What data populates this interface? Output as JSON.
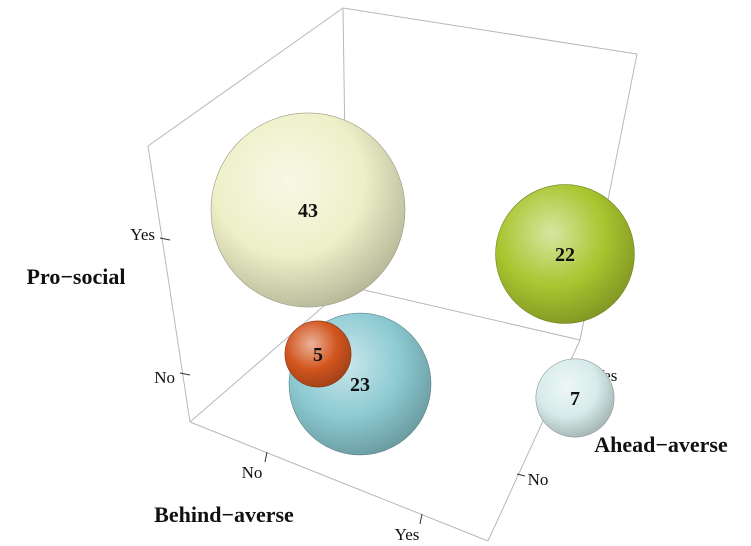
{
  "chart_data": {
    "type": "bubble3d",
    "axes": {
      "x": {
        "label": "Behind−averse",
        "ticks": [
          "No",
          "Yes"
        ]
      },
      "y": {
        "label": "Ahead−averse",
        "ticks": [
          "No",
          "Yes"
        ]
      },
      "z": {
        "label": "Pro−social",
        "ticks": [
          "No",
          "Yes"
        ]
      }
    },
    "points": [
      {
        "behind_averse": "Yes",
        "ahead_averse": "Yes",
        "pro_social": "Yes",
        "value": 22,
        "color": "#a9c52f"
      },
      {
        "behind_averse": "No",
        "ahead_averse": "No",
        "pro_social": "Yes",
        "value": 43,
        "color": "#eef0c8"
      },
      {
        "behind_averse": "Yes",
        "ahead_averse": "Yes",
        "pro_social": "No",
        "value": 7,
        "color": "#d6ecea"
      },
      {
        "behind_averse": "No",
        "ahead_averse": "No",
        "pro_social": "No",
        "value": 5,
        "color": "#d2551e"
      },
      {
        "behind_averse": "Yes",
        "ahead_averse": "No",
        "pro_social": "No",
        "value": 23,
        "color": "#8ccad2"
      }
    ],
    "grid": false,
    "legend": "none"
  }
}
